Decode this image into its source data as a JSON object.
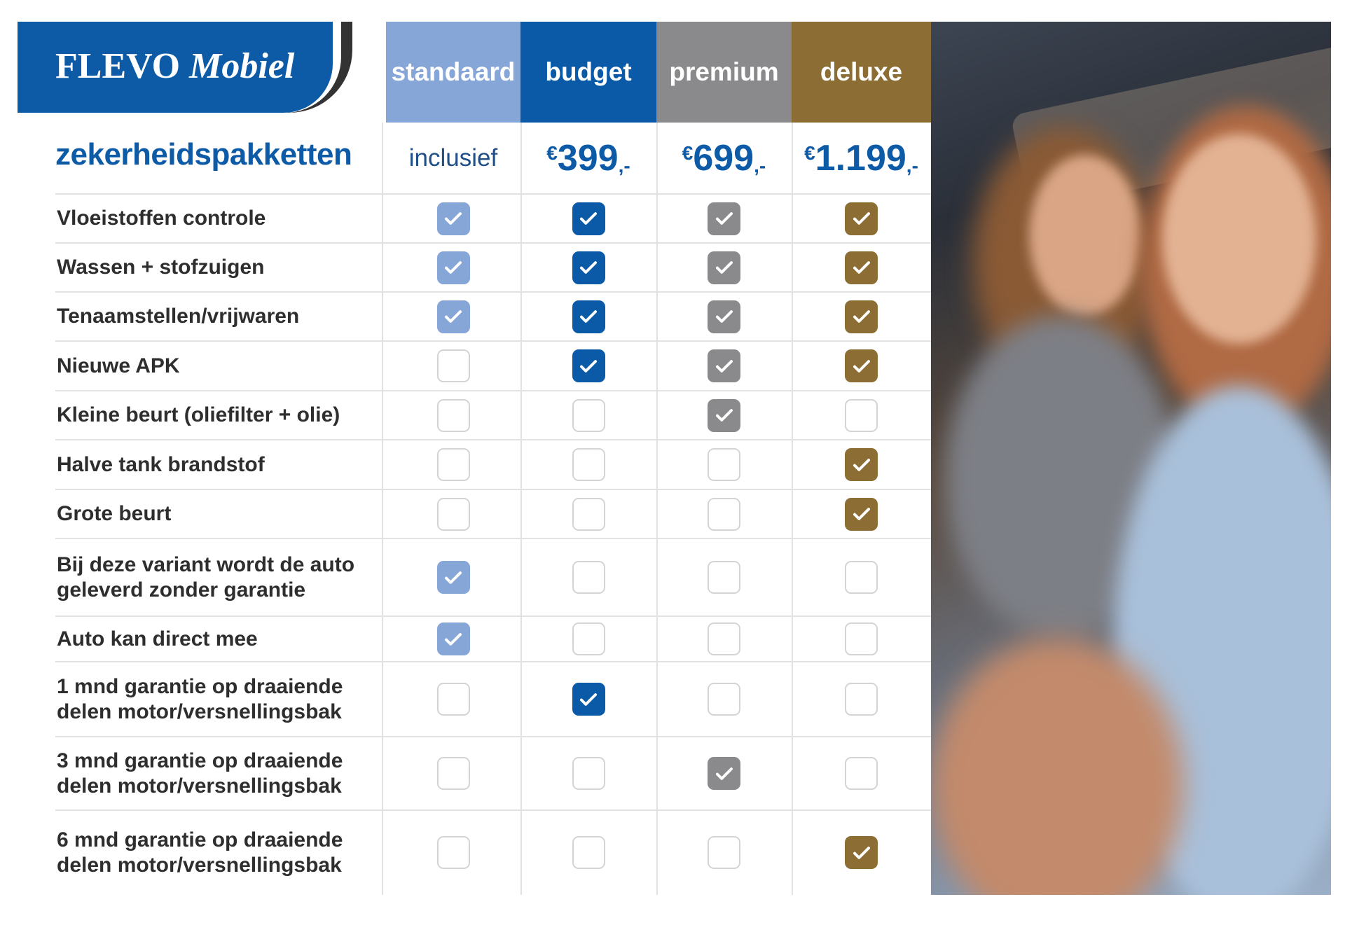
{
  "brand": {
    "name": "FLEVO",
    "name_italic": "Mobiel"
  },
  "title": "zekerheidspakketten",
  "packages": [
    {
      "name": "standaard",
      "price": {
        "type": "text",
        "text": "inclusief"
      },
      "color": "#86a6d8"
    },
    {
      "name": "budget",
      "price": {
        "type": "amount",
        "currency": "€",
        "amount": "399",
        "suffix": ",-"
      },
      "color": "#0a5aa8"
    },
    {
      "name": "premium",
      "price": {
        "type": "amount",
        "currency": "€",
        "amount": "699",
        "suffix": ",-"
      },
      "color": "#8a8a8c"
    },
    {
      "name": "deluxe",
      "price": {
        "type": "amount",
        "currency": "€",
        "amount": "1.199",
        "suffix": ",-"
      },
      "color": "#8c6d33"
    }
  ],
  "features": [
    {
      "label": "Vloeistoffen controle",
      "checks": [
        true,
        true,
        true,
        true
      ]
    },
    {
      "label": "Wassen + stofzuigen",
      "checks": [
        true,
        true,
        true,
        true
      ]
    },
    {
      "label": "Tenaamstellen/vrijwaren",
      "checks": [
        true,
        true,
        true,
        true
      ]
    },
    {
      "label": "Nieuwe APK",
      "checks": [
        false,
        true,
        true,
        true
      ]
    },
    {
      "label": "Kleine beurt (oliefilter + olie)",
      "checks": [
        false,
        false,
        true,
        false
      ]
    },
    {
      "label": "Halve tank brandstof",
      "checks": [
        false,
        false,
        false,
        true
      ]
    },
    {
      "label": "Grote beurt",
      "checks": [
        false,
        false,
        false,
        true
      ]
    },
    {
      "label": "Bij deze variant wordt de auto geleverd zonder garantie",
      "checks": [
        true,
        false,
        false,
        false
      ]
    },
    {
      "label": "Auto kan direct mee",
      "checks": [
        true,
        false,
        false,
        false
      ]
    },
    {
      "label": "1 mnd garantie op draaiende delen motor/versnellingsbak",
      "checks": [
        false,
        true,
        false,
        false
      ]
    },
    {
      "label": "3 mnd garantie op draaiende delen motor/versnellingsbak",
      "checks": [
        false,
        false,
        true,
        false
      ]
    },
    {
      "label": "6 mnd garantie op draaiende delen motor/versnellingsbak",
      "checks": [
        false,
        false,
        false,
        true
      ]
    }
  ],
  "photo": {
    "subject": "smiling couple in car"
  }
}
